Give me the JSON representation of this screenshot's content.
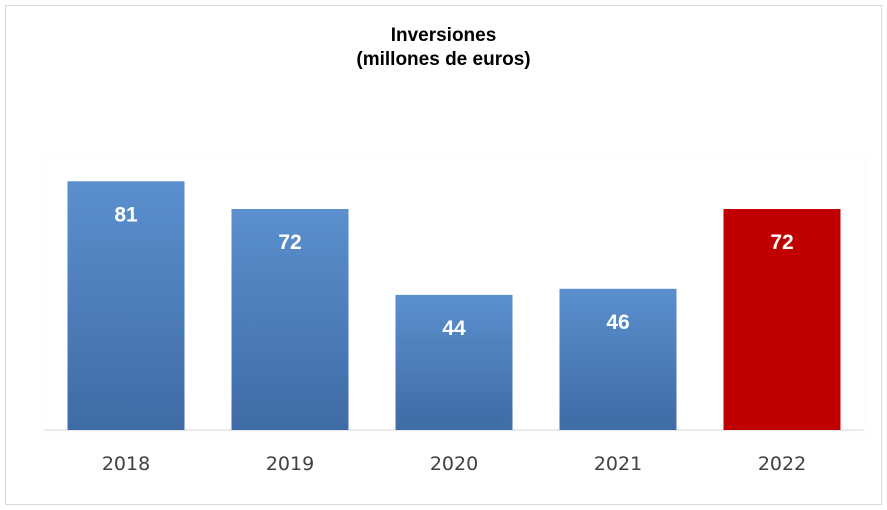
{
  "chart_data": {
    "type": "bar",
    "title": [
      "Inversiones",
      "(millones de euros)"
    ],
    "categories": [
      "2018",
      "2019",
      "2020",
      "2021",
      "2022"
    ],
    "series": [
      {
        "values": [
          81,
          72,
          44,
          46,
          72
        ]
      }
    ],
    "bar_colors": [
      "#4a7ab8",
      "#4a7ab8",
      "#4a7ab8",
      "#4a7ab8",
      "#c00000"
    ],
    "data_label_color": "#ffffff",
    "ylim": [
      0,
      90
    ],
    "grid": false,
    "legend": "none"
  }
}
